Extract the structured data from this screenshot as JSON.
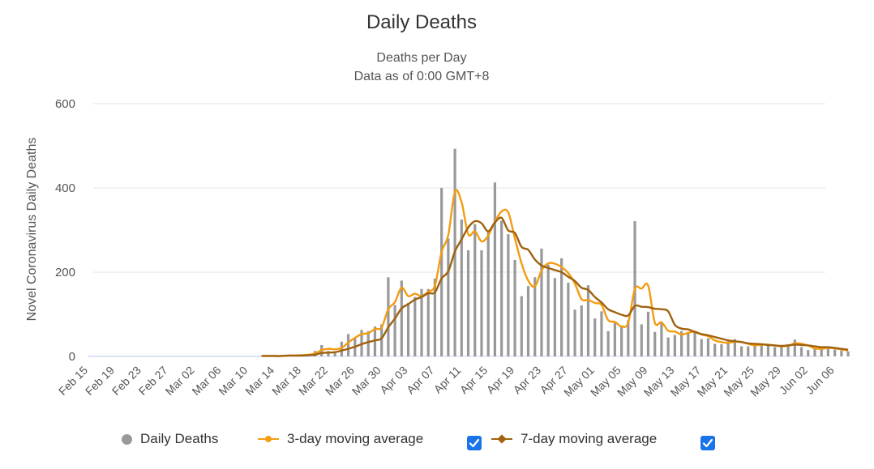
{
  "title": "Daily Deaths",
  "subtitle_line1": "Deaths per Day",
  "subtitle_line2": "Data as of 0:00 GMT+8",
  "colors": {
    "bars": "#999999",
    "ma3": "#f39c12",
    "ma7": "#a0620e",
    "grid": "#e6e6e6",
    "checkbox": "#1a73e8"
  },
  "legend": {
    "daily": "Daily Deaths",
    "ma3": "3-day moving average",
    "ma7": "7-day moving average",
    "ma3_checked": true,
    "ma7_checked": true
  },
  "chart_data": {
    "type": "bar",
    "ylabel": "Novel Coronavirus Daily Deaths",
    "ylim": [
      0,
      600
    ],
    "yticks": [
      0,
      200,
      400,
      600
    ],
    "x_start": "Feb 15",
    "x_end": "Jun 06",
    "xticks": [
      "Feb 15",
      "Feb 19",
      "Feb 23",
      "Feb 27",
      "Mar 02",
      "Mar 06",
      "Mar 10",
      "Mar 14",
      "Mar 18",
      "Mar 22",
      "Mar 26",
      "Mar 30",
      "Apr 03",
      "Apr 07",
      "Apr 11",
      "Apr 15",
      "Apr 19",
      "Apr 23",
      "Apr 27",
      "May 01",
      "May 05",
      "May 09",
      "May 13",
      "May 17",
      "May 21",
      "May 25",
      "May 29",
      "Jun 02",
      "Jun 06"
    ],
    "grid": true,
    "legend_position": "bottom",
    "series": [
      {
        "name": "Daily Deaths",
        "type": "bar",
        "start": "Mar 12",
        "values": [
          1,
          1,
          1,
          2,
          2,
          3,
          4,
          5,
          13,
          27,
          13,
          12,
          35,
          53,
          43,
          63,
          60,
          71,
          76,
          188,
          122,
          180,
          127,
          141,
          160,
          160,
          185,
          400,
          280,
          493,
          325,
          252,
          314,
          252,
          296,
          413,
          322,
          290,
          229,
          143,
          167,
          188,
          256,
          218,
          186,
          233,
          175,
          111,
          121,
          169,
          90,
          107,
          60,
          80,
          74,
          86,
          321,
          76,
          106,
          58,
          80,
          45,
          51,
          60,
          56,
          60,
          41,
          43,
          30,
          29,
          36,
          41,
          24,
          24,
          29,
          30,
          26,
          22,
          24,
          29,
          40,
          22,
          15,
          19,
          20,
          21,
          16,
          14,
          12
        ]
      },
      {
        "name": "3-day moving average",
        "type": "line",
        "start": "Mar 12",
        "values": [
          1,
          1,
          1,
          1,
          2,
          2,
          3,
          4,
          7,
          15,
          18,
          17,
          20,
          33,
          44,
          53,
          55,
          65,
          69,
          112,
          129,
          163,
          143,
          149,
          143,
          154,
          168,
          248,
          288,
          391,
          366,
          290,
          297,
          273,
          287,
          320,
          344,
          342,
          280,
          221,
          180,
          166,
          204,
          221,
          220,
          212,
          198,
          173,
          136,
          134,
          127,
          122,
          86,
          82,
          71,
          80,
          160,
          161,
          168,
          80,
          81,
          61,
          59,
          52,
          56,
          59,
          52,
          48,
          38,
          34,
          32,
          35,
          34,
          30,
          26,
          28,
          28,
          26,
          24,
          25,
          31,
          30,
          26,
          19,
          18,
          20,
          19,
          17,
          14
        ]
      },
      {
        "name": "7-day moving average",
        "type": "line",
        "start": "Mar 12",
        "values": [
          1,
          1,
          1,
          1,
          2,
          2,
          2,
          3,
          4,
          8,
          9,
          10,
          14,
          18,
          23,
          29,
          34,
          38,
          43,
          69,
          90,
          114,
          124,
          135,
          141,
          150,
          152,
          185,
          202,
          249,
          278,
          306,
          321,
          316,
          297,
          318,
          329,
          299,
          293,
          260,
          253,
          230,
          216,
          210,
          205,
          200,
          189,
          179,
          163,
          158,
          141,
          128,
          112,
          105,
          99,
          97,
          120,
          118,
          117,
          113,
          112,
          107,
          75,
          66,
          64,
          58,
          53,
          50,
          46,
          42,
          38,
          36,
          34,
          31,
          30,
          29,
          27,
          26,
          25,
          26,
          28,
          27,
          26,
          24,
          22,
          22,
          20,
          18,
          16
        ]
      }
    ]
  }
}
